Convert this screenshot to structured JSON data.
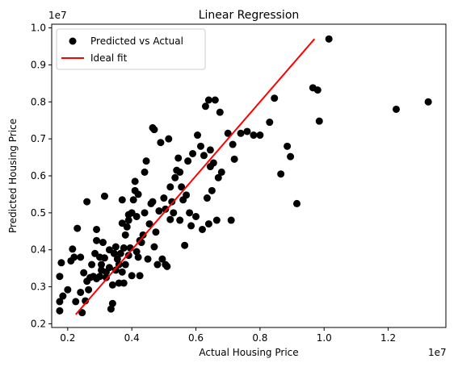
{
  "chart_data": {
    "type": "scatter",
    "title": "Linear Regression",
    "xlabel": "Actual Housing Price",
    "ylabel": "Predicted Housing Price",
    "x_offset_text": "1e7",
    "y_offset_text": "1e7",
    "xlim": [
      0.15,
      1.38
    ],
    "ylim": [
      0.19,
      1.01
    ],
    "x_ticks": [
      0.2,
      0.4,
      0.6,
      0.8,
      1.0,
      1.2
    ],
    "x_tick_labels": [
      "0.2",
      "0.4",
      "0.6",
      "0.8",
      "1.0",
      "1.2"
    ],
    "y_ticks": [
      0.2,
      0.3,
      0.4,
      0.5,
      0.6,
      0.7,
      0.8,
      0.9,
      1.0
    ],
    "y_tick_labels": [
      "0.2",
      "0.3",
      "0.4",
      "0.5",
      "0.6",
      "0.7",
      "0.8",
      "0.9",
      "1.0"
    ],
    "grid": false,
    "legend": {
      "placement": "top-left",
      "entries": [
        "Predicted vs Actual",
        "Ideal fit"
      ]
    },
    "series": [
      {
        "name": "Predicted vs Actual",
        "kind": "scatter",
        "color": "#000000",
        "points": [
          [
            0.175,
            0.235
          ],
          [
            0.175,
            0.26
          ],
          [
            0.175,
            0.328
          ],
          [
            0.18,
            0.365
          ],
          [
            0.185,
            0.275
          ],
          [
            0.2,
            0.292
          ],
          [
            0.21,
            0.37
          ],
          [
            0.215,
            0.402
          ],
          [
            0.22,
            0.38
          ],
          [
            0.225,
            0.26
          ],
          [
            0.23,
            0.458
          ],
          [
            0.24,
            0.285
          ],
          [
            0.24,
            0.38
          ],
          [
            0.245,
            0.23
          ],
          [
            0.25,
            0.338
          ],
          [
            0.255,
            0.262
          ],
          [
            0.26,
            0.315
          ],
          [
            0.26,
            0.53
          ],
          [
            0.265,
            0.292
          ],
          [
            0.27,
            0.325
          ],
          [
            0.275,
            0.36
          ],
          [
            0.28,
            0.328
          ],
          [
            0.285,
            0.39
          ],
          [
            0.29,
            0.322
          ],
          [
            0.29,
            0.425
          ],
          [
            0.29,
            0.455
          ],
          [
            0.3,
            0.38
          ],
          [
            0.3,
            0.328
          ],
          [
            0.305,
            0.345
          ],
          [
            0.305,
            0.36
          ],
          [
            0.31,
            0.42
          ],
          [
            0.315,
            0.378
          ],
          [
            0.315,
            0.545
          ],
          [
            0.32,
            0.34
          ],
          [
            0.32,
            0.325
          ],
          [
            0.33,
            0.352
          ],
          [
            0.33,
            0.4
          ],
          [
            0.335,
            0.24
          ],
          [
            0.34,
            0.255
          ],
          [
            0.34,
            0.305
          ],
          [
            0.345,
            0.39
          ],
          [
            0.35,
            0.345
          ],
          [
            0.35,
            0.408
          ],
          [
            0.355,
            0.375
          ],
          [
            0.36,
            0.31
          ],
          [
            0.36,
            0.36
          ],
          [
            0.365,
            0.39
          ],
          [
            0.37,
            0.34
          ],
          [
            0.37,
            0.472
          ],
          [
            0.37,
            0.535
          ],
          [
            0.375,
            0.31
          ],
          [
            0.375,
            0.405
          ],
          [
            0.38,
            0.36
          ],
          [
            0.38,
            0.44
          ],
          [
            0.385,
            0.462
          ],
          [
            0.39,
            0.385
          ],
          [
            0.39,
            0.48
          ],
          [
            0.39,
            0.495
          ],
          [
            0.395,
            0.405
          ],
          [
            0.4,
            0.33
          ],
          [
            0.4,
            0.5
          ],
          [
            0.405,
            0.535
          ],
          [
            0.41,
            0.56
          ],
          [
            0.41,
            0.585
          ],
          [
            0.415,
            0.49
          ],
          [
            0.415,
            0.395
          ],
          [
            0.42,
            0.38
          ],
          [
            0.42,
            0.55
          ],
          [
            0.425,
            0.33
          ],
          [
            0.425,
            0.425
          ],
          [
            0.43,
            0.42
          ],
          [
            0.435,
            0.44
          ],
          [
            0.44,
            0.5
          ],
          [
            0.44,
            0.61
          ],
          [
            0.445,
            0.64
          ],
          [
            0.45,
            0.375
          ],
          [
            0.455,
            0.47
          ],
          [
            0.46,
            0.525
          ],
          [
            0.465,
            0.53
          ],
          [
            0.465,
            0.73
          ],
          [
            0.47,
            0.725
          ],
          [
            0.47,
            0.408
          ],
          [
            0.475,
            0.448
          ],
          [
            0.48,
            0.36
          ],
          [
            0.485,
            0.505
          ],
          [
            0.49,
            0.69
          ],
          [
            0.495,
            0.375
          ],
          [
            0.5,
            0.54
          ],
          [
            0.505,
            0.36
          ],
          [
            0.505,
            0.51
          ],
          [
            0.51,
            0.355
          ],
          [
            0.515,
            0.7
          ],
          [
            0.52,
            0.482
          ],
          [
            0.52,
            0.57
          ],
          [
            0.525,
            0.53
          ],
          [
            0.53,
            0.5
          ],
          [
            0.535,
            0.595
          ],
          [
            0.54,
            0.615
          ],
          [
            0.545,
            0.648
          ],
          [
            0.55,
            0.48
          ],
          [
            0.55,
            0.61
          ],
          [
            0.555,
            0.57
          ],
          [
            0.56,
            0.535
          ],
          [
            0.565,
            0.412
          ],
          [
            0.57,
            0.548
          ],
          [
            0.575,
            0.64
          ],
          [
            0.58,
            0.5
          ],
          [
            0.585,
            0.465
          ],
          [
            0.59,
            0.66
          ],
          [
            0.6,
            0.49
          ],
          [
            0.605,
            0.71
          ],
          [
            0.615,
            0.68
          ],
          [
            0.62,
            0.455
          ],
          [
            0.625,
            0.655
          ],
          [
            0.63,
            0.788
          ],
          [
            0.635,
            0.54
          ],
          [
            0.64,
            0.805
          ],
          [
            0.64,
            0.47
          ],
          [
            0.645,
            0.67
          ],
          [
            0.645,
            0.625
          ],
          [
            0.65,
            0.56
          ],
          [
            0.655,
            0.635
          ],
          [
            0.66,
            0.805
          ],
          [
            0.665,
            0.48
          ],
          [
            0.67,
            0.595
          ],
          [
            0.675,
            0.772
          ],
          [
            0.68,
            0.61
          ],
          [
            0.7,
            0.715
          ],
          [
            0.71,
            0.48
          ],
          [
            0.715,
            0.685
          ],
          [
            0.72,
            0.645
          ],
          [
            0.74,
            0.715
          ],
          [
            0.76,
            0.72
          ],
          [
            0.78,
            0.71
          ],
          [
            0.8,
            0.71
          ],
          [
            0.83,
            0.745
          ],
          [
            0.845,
            0.81
          ],
          [
            0.865,
            0.605
          ],
          [
            0.885,
            0.68
          ],
          [
            0.895,
            0.652
          ],
          [
            0.915,
            0.525
          ],
          [
            0.965,
            0.838
          ],
          [
            0.98,
            0.832
          ],
          [
            0.985,
            0.748
          ],
          [
            1.015,
            0.97
          ],
          [
            1.225,
            0.78
          ],
          [
            1.325,
            0.8
          ]
        ]
      },
      {
        "name": "Ideal fit",
        "kind": "line",
        "color": "#ff0000",
        "points": [
          [
            0.225,
            0.225
          ],
          [
            0.97,
            0.97
          ]
        ]
      }
    ]
  }
}
